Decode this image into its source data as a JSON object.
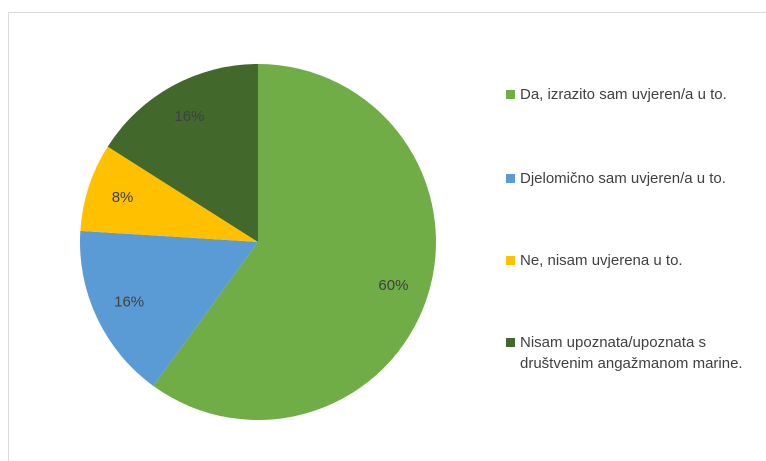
{
  "chart_data": {
    "type": "pie",
    "categories": [
      "Da, izrazito sam uvjeren/a u to.",
      "Djelomično sam uvjeren/a u to.",
      "Ne, nisam uvjerena u to.",
      "Nisam upoznata/upoznata s društvenim angažmanom marine."
    ],
    "values": [
      60,
      16,
      8,
      16
    ],
    "value_labels": [
      "60%",
      "16%",
      "8%",
      "16%"
    ],
    "colors": [
      "#70ad47",
      "#5b9bd5",
      "#ffc000",
      "#43682b"
    ],
    "legend": "right"
  }
}
